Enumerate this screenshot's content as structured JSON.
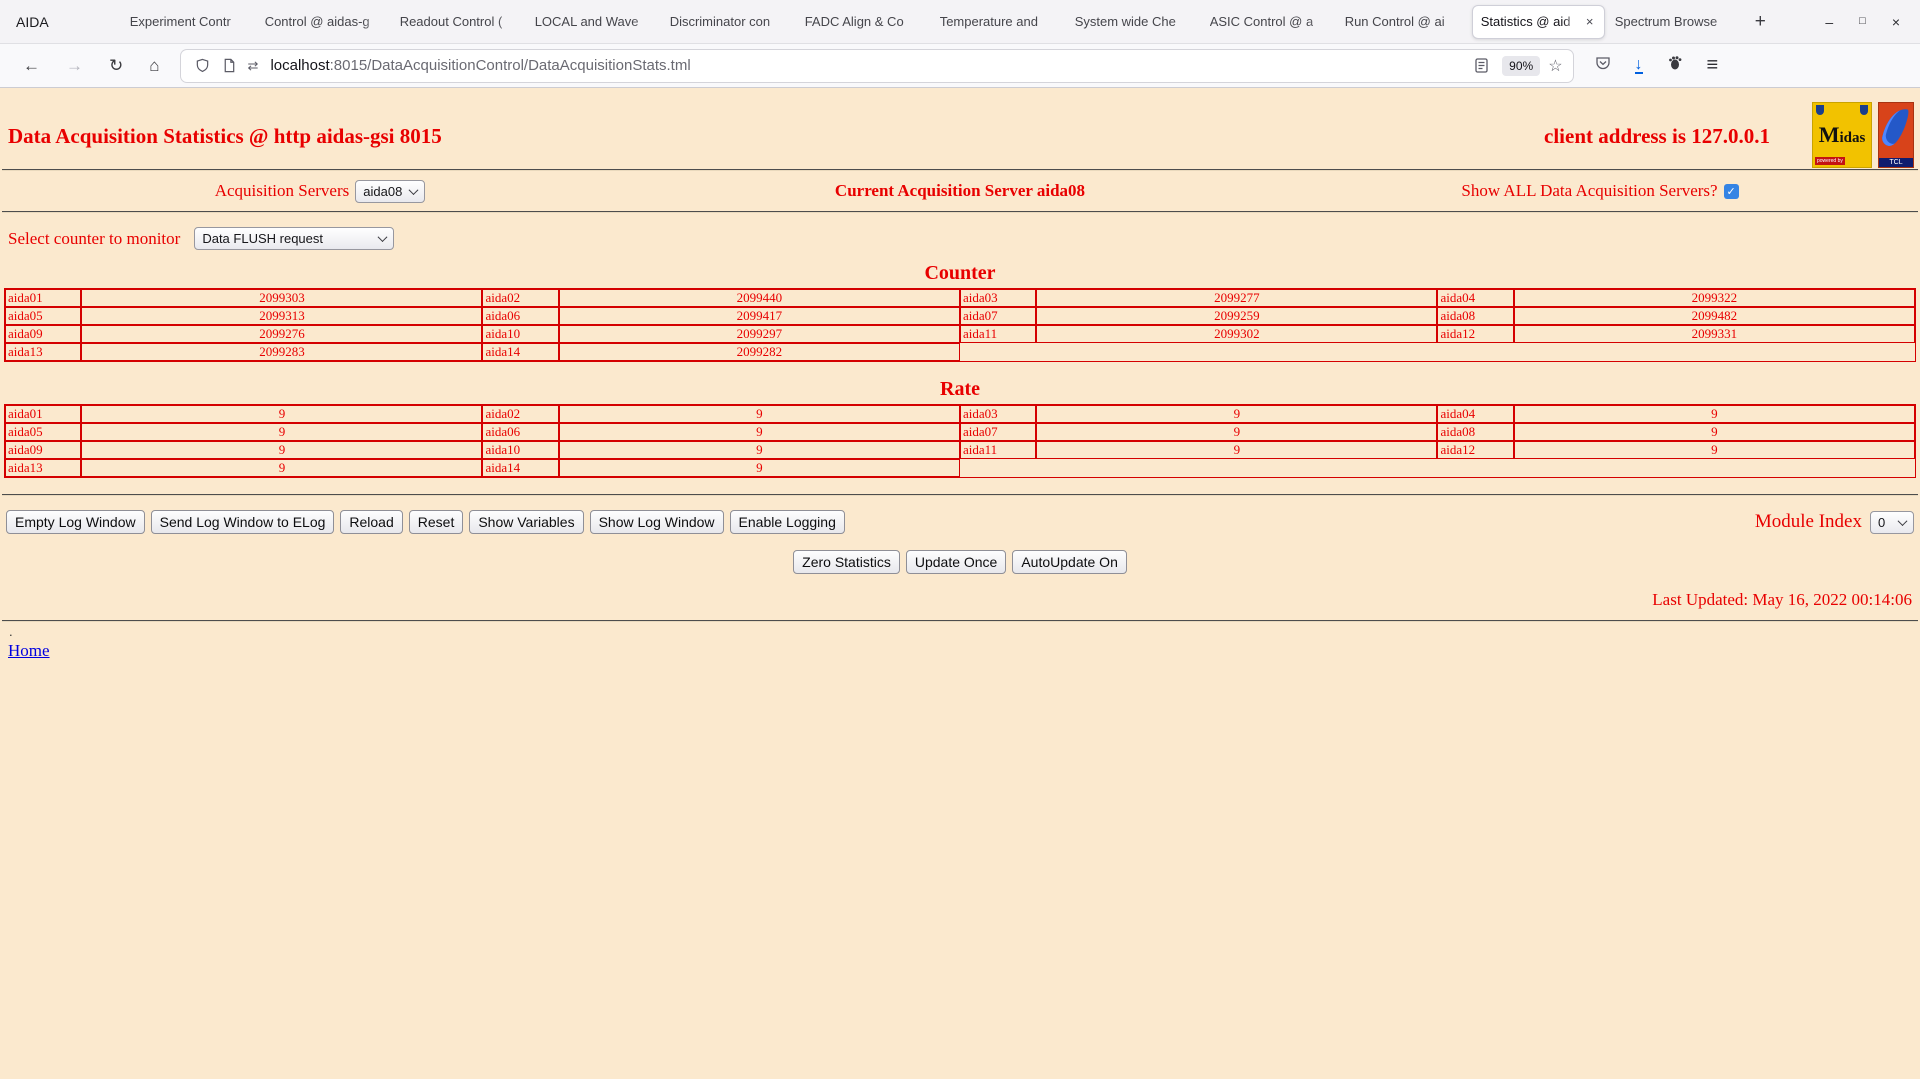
{
  "browser": {
    "window_title": "AIDA",
    "tabs": [
      {
        "label": "Experiment Contr",
        "active": false
      },
      {
        "label": "Control @ aidas-g",
        "active": false
      },
      {
        "label": "Readout Control (",
        "active": false
      },
      {
        "label": "LOCAL and Wave",
        "active": false
      },
      {
        "label": "Discriminator con",
        "active": false
      },
      {
        "label": "FADC Align & Co",
        "active": false
      },
      {
        "label": "Temperature and",
        "active": false
      },
      {
        "label": "System wide Che",
        "active": false
      },
      {
        "label": "ASIC Control @ a",
        "active": false
      },
      {
        "label": "Run Control @ ai",
        "active": false
      },
      {
        "label": "Statistics @ aid",
        "active": true
      },
      {
        "label": "Spectrum Browse",
        "active": false
      }
    ],
    "url_host": "localhost",
    "url_path": ":8015/DataAcquisitionControl/DataAcquisitionStats.tml",
    "zoom_indicator": "90%"
  },
  "icons": {
    "back": "←",
    "forward": "→",
    "reload": "↻",
    "home": "⌂",
    "star": "☆",
    "menu": "≡",
    "download": "↓",
    "permissions": "⇄",
    "new_tab": "+",
    "close_tab": "×",
    "minimize": "–",
    "maximize": "□",
    "close_window": "×",
    "checkbox_check": "✓"
  },
  "page": {
    "title": "Data Acquisition Statistics @ http aidas-gsi 8015",
    "client_address": "client address is 127.0.0.1",
    "midas_logo_text": "Midas",
    "midas_logo_sub": "powered by",
    "tcl_logo_text": "TCL",
    "acquisition_label": "Acquisition Servers",
    "acquisition_selected": "aida08",
    "current_server_text": "Current Acquisition Server aida08",
    "show_all_label": "Show ALL Data Acquisition Servers?",
    "show_all_checked": true,
    "counter_monitor_label": "Select counter to monitor",
    "counter_monitor_selected": "Data FLUSH request",
    "counter_title": "Counter",
    "counter_rows": [
      [
        [
          "aida01",
          "2099303"
        ],
        [
          "aida02",
          "2099440"
        ],
        [
          "aida03",
          "2099277"
        ],
        [
          "aida04",
          "2099322"
        ]
      ],
      [
        [
          "aida05",
          "2099313"
        ],
        [
          "aida06",
          "2099417"
        ],
        [
          "aida07",
          "2099259"
        ],
        [
          "aida08",
          "2099482"
        ]
      ],
      [
        [
          "aida09",
          "2099276"
        ],
        [
          "aida10",
          "2099297"
        ],
        [
          "aida11",
          "2099302"
        ],
        [
          "aida12",
          "2099331"
        ]
      ],
      [
        [
          "aida13",
          "2099283"
        ],
        [
          "aida14",
          "2099282"
        ]
      ]
    ],
    "rate_title": "Rate",
    "rate_rows": [
      [
        [
          "aida01",
          "9"
        ],
        [
          "aida02",
          "9"
        ],
        [
          "aida03",
          "9"
        ],
        [
          "aida04",
          "9"
        ]
      ],
      [
        [
          "aida05",
          "9"
        ],
        [
          "aida06",
          "9"
        ],
        [
          "aida07",
          "9"
        ],
        [
          "aida08",
          "9"
        ]
      ],
      [
        [
          "aida09",
          "9"
        ],
        [
          "aida10",
          "9"
        ],
        [
          "aida11",
          "9"
        ],
        [
          "aida12",
          "9"
        ]
      ],
      [
        [
          "aida13",
          "9"
        ],
        [
          "aida14",
          "9"
        ]
      ]
    ],
    "log_buttons": [
      "Empty Log Window",
      "Send Log Window to ELog",
      "Reload",
      "Reset",
      "Show Variables",
      "Show Log Window",
      "Enable Logging"
    ],
    "module_index_label": "Module Index",
    "module_index_selected": "0",
    "update_buttons": [
      "Zero Statistics",
      "Update Once",
      "AutoUpdate On"
    ],
    "last_updated": "Last Updated: May 16, 2022 00:14:06",
    "footer_dot": ".",
    "home_link": "Home"
  },
  "colors": {
    "page_bg": "#FBE9CE",
    "accent_red": "#E80000",
    "table_border": "#D40000",
    "link_blue": "#0000E0",
    "checkbox_blue": "#3584E4",
    "download_blue": "#0060DF"
  }
}
